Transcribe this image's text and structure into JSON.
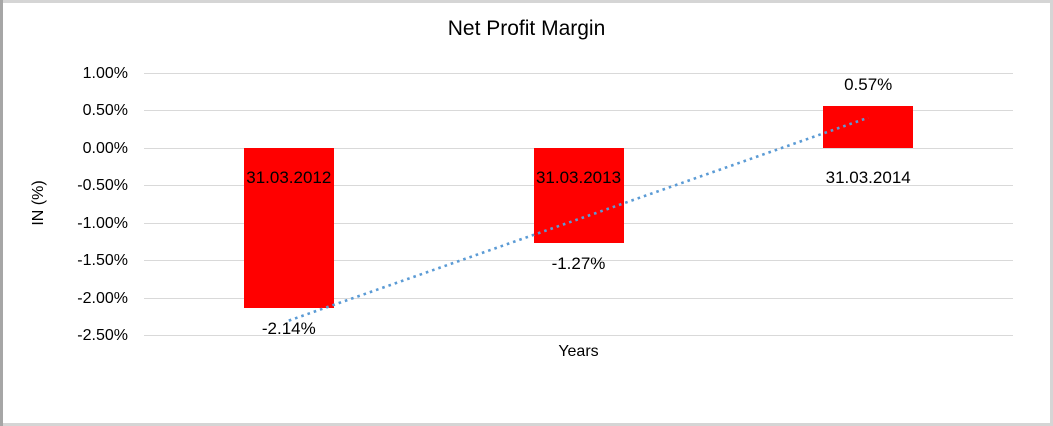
{
  "chart_data": {
    "type": "bar",
    "title": "Net Profit Margin",
    "xlabel": "Years",
    "ylabel": "IN (%)",
    "categories": [
      "31.03.2012",
      "31.03.2013",
      "31.03.2014"
    ],
    "values": [
      -2.14,
      -1.27,
      0.57
    ],
    "value_labels": [
      "-2.14%",
      "-1.27%",
      "0.57%"
    ],
    "yticks": [
      {
        "value": 1.0,
        "label": "1.00%"
      },
      {
        "value": 0.5,
        "label": "0.50%"
      },
      {
        "value": 0.0,
        "label": "0.00%"
      },
      {
        "value": -0.5,
        "label": "-0.50%"
      },
      {
        "value": -1.0,
        "label": "-1.00%"
      },
      {
        "value": -1.5,
        "label": "-1.50%"
      },
      {
        "value": -2.0,
        "label": "-2.00%"
      },
      {
        "value": -2.5,
        "label": "-2.50%"
      }
    ],
    "ylim": [
      -2.5,
      1.0
    ],
    "grid": "on",
    "legend": "none",
    "bar_color": "#ff0000",
    "gridline_color": "#d9d9d9",
    "trendline": {
      "type": "linear",
      "style": "dotted",
      "color": "#5b9bd5"
    }
  }
}
